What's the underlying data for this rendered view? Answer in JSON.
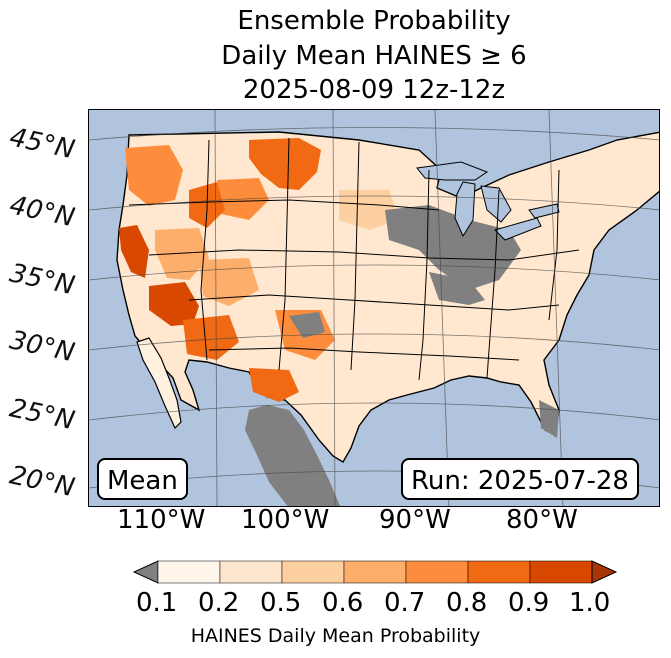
{
  "title": {
    "line1": "Ensemble Probability",
    "line2": "Daily Mean HAINES ≥ 6",
    "line3": "2025-08-09 12z-12z"
  },
  "map": {
    "latitude_labels": [
      "45°N",
      "40°N",
      "35°N",
      "30°N",
      "25°N",
      "20°N"
    ],
    "longitude_labels": [
      "110°W",
      "100°W",
      "90°W",
      "80°W"
    ],
    "stat_label": "Mean",
    "run_label": "Run: 2025-07-28",
    "ocean_color": "#b0c4de",
    "land_color": "#ffffff",
    "missing_color": "#808080"
  },
  "colorbar": {
    "ticks": [
      "0.1",
      "0.2",
      "0.5",
      "0.6",
      "0.7",
      "0.8",
      "0.9",
      "1.0"
    ],
    "colors": [
      "#fff5eb",
      "#fee6ce",
      "#fdd0a2",
      "#fdae6b",
      "#fd8d3c",
      "#f16913",
      "#d94801",
      "#a63603"
    ],
    "under_color": "#808080",
    "label": "HAINES Daily Mean Probability"
  }
}
